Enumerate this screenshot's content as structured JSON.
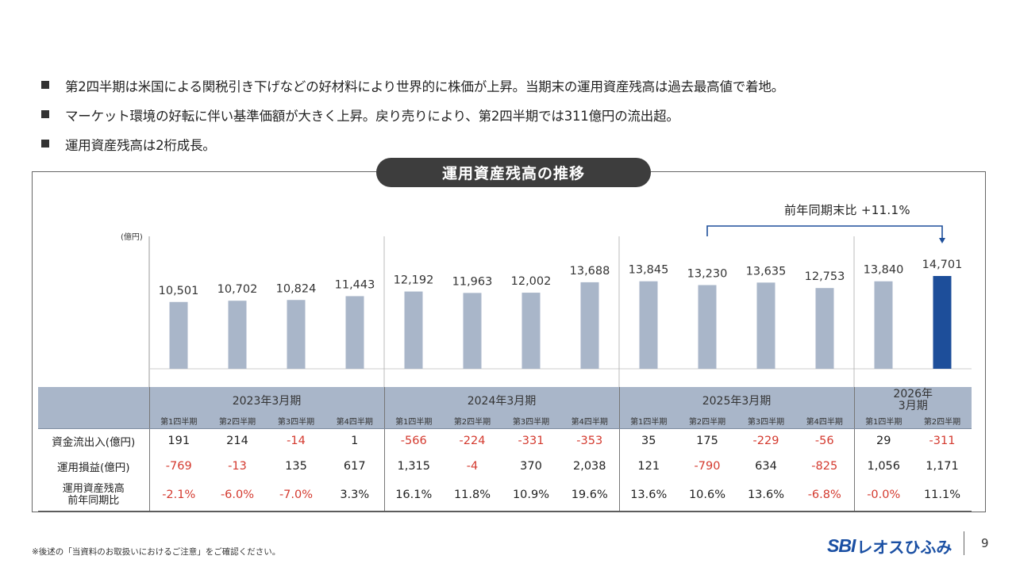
{
  "bullets": [
    "第2四半期は米国による関税引き下げなどの好材料により世界的に株価が上昇。当期末の運用資産残高は過去最高値で着地。",
    "マーケット環境の好転に伴い基準価額が大きく上昇。戻り売りにより、第2四半期では311億円の流出超。",
    "運用資産残高は2桁成長。"
  ],
  "chart_title": "運用資産残高の推移",
  "yoy_note": "前年同期末比 +11.1%",
  "colors": {
    "bar": "#a9b6c9",
    "highlight": "#1d4e9a",
    "negative": "#d43a2f",
    "pill": "#3d3d3d"
  },
  "chart_data": {
    "type": "bar",
    "title": "運用資産残高の推移",
    "ylabel": "(億円)",
    "ylim": [
      0,
      15000
    ],
    "categories": [
      "2023Q1",
      "2023Q2",
      "2023Q3",
      "2023Q4",
      "2024Q1",
      "2024Q2",
      "2024Q3",
      "2024Q4",
      "2025Q1",
      "2025Q2",
      "2025Q3",
      "2025Q4",
      "2026Q1",
      "2026Q2"
    ],
    "values": [
      10501,
      10702,
      10824,
      11443,
      12192,
      11963,
      12002,
      13688,
      13845,
      13230,
      13635,
      12753,
      13840,
      14701
    ],
    "value_labels": [
      "10,501",
      "10,702",
      "10,824",
      "11,443",
      "12,192",
      "11,963",
      "12,002",
      "13,688",
      "13,845",
      "13,230",
      "13,635",
      "12,753",
      "13,840",
      "14,701"
    ],
    "highlight_index": 13,
    "annotation": "前年同期末比 +11.1%"
  },
  "table": {
    "fiscal_years": [
      "2023年3月期",
      "2024年3月期",
      "2025年3月期",
      "2026年3月期"
    ],
    "fy_2026_lines": [
      "2026年",
      "3月期"
    ],
    "quarters": [
      "第1四半期",
      "第2四半期",
      "第3四半期",
      "第4四半期",
      "第1四半期",
      "第2四半期",
      "第3四半期",
      "第4四半期",
      "第1四半期",
      "第2四半期",
      "第3四半期",
      "第4四半期",
      "第1四半期",
      "第2四半期"
    ],
    "rows": [
      {
        "label": "資金流出入(億円)",
        "values": [
          "191",
          "214",
          "-14",
          "1",
          "-566",
          "-224",
          "-331",
          "-353",
          "35",
          "175",
          "-229",
          "-56",
          "29",
          "-311"
        ]
      },
      {
        "label": "運用損益(億円)",
        "values": [
          "-769",
          "-13",
          "135",
          "617",
          "1,315",
          "-4",
          "370",
          "2,038",
          "121",
          "-790",
          "634",
          "-825",
          "1,056",
          "1,171"
        ]
      },
      {
        "label_lines": [
          "運用資産残高",
          "前年同期比"
        ],
        "values": [
          "-2.1%",
          "-6.0%",
          "-7.0%",
          "3.3%",
          "16.1%",
          "11.8%",
          "10.9%",
          "19.6%",
          "13.6%",
          "10.6%",
          "13.6%",
          "-6.8%",
          "-0.0%",
          "11.1%"
        ]
      }
    ]
  },
  "footnote": "※後述の「当資料のお取扱いにおけるご注意」をご確認ください。",
  "logo": {
    "mark": "SBI",
    "name": "レオスひふみ"
  },
  "page_number": "9"
}
